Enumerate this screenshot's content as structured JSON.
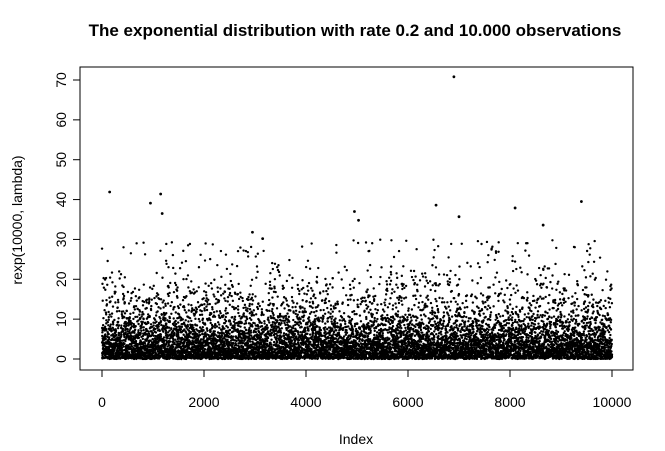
{
  "chart_data": {
    "type": "scatter",
    "title": "The exponential distribution with rate 0.2 and 10.000 observations",
    "xlabel": "Index",
    "ylabel": "rexp(10000, lambda)",
    "xlim": [
      0,
      10000
    ],
    "ylim": [
      0,
      70
    ],
    "x_ticks": [
      "0",
      "2000",
      "4000",
      "6000",
      "8000",
      "10000"
    ],
    "y_ticks": [
      "0",
      "10",
      "20",
      "30",
      "40",
      "50",
      "60",
      "70"
    ],
    "grid": false,
    "legend": "none",
    "point_color": "#000000",
    "series": [
      {
        "n_observations": 10000,
        "rate": 0.2,
        "highlighted_points": [
          {
            "x": 150,
            "y": 41.9
          },
          {
            "x": 950,
            "y": 39.1
          },
          {
            "x": 1150,
            "y": 41.4
          },
          {
            "x": 1180,
            "y": 36.5
          },
          {
            "x": 2950,
            "y": 31.8
          },
          {
            "x": 3150,
            "y": 30.2
          },
          {
            "x": 4950,
            "y": 37.0
          },
          {
            "x": 5030,
            "y": 34.8
          },
          {
            "x": 6550,
            "y": 38.6
          },
          {
            "x": 6900,
            "y": 70.8
          },
          {
            "x": 7000,
            "y": 35.7
          },
          {
            "x": 8100,
            "y": 37.9
          },
          {
            "x": 8650,
            "y": 33.6
          },
          {
            "x": 9400,
            "y": 39.5
          }
        ]
      }
    ]
  }
}
